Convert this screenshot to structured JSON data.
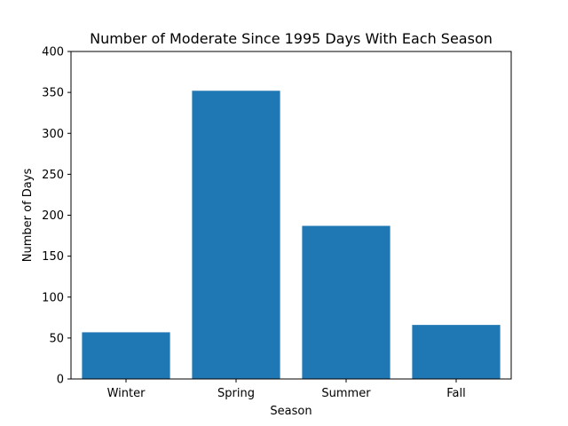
{
  "chart_data": {
    "type": "bar",
    "title": "Number of Moderate Since 1995 Days With Each Season",
    "xlabel": "Season",
    "ylabel": "Number of Days",
    "categories": [
      "Winter",
      "Spring",
      "Summer",
      "Fall"
    ],
    "values": [
      57,
      352,
      187,
      66
    ],
    "ylim": [
      0,
      400
    ],
    "yticks": [
      0,
      50,
      100,
      150,
      200,
      250,
      300,
      350,
      400
    ],
    "grid": false,
    "bar_color": "#1f77b4"
  }
}
